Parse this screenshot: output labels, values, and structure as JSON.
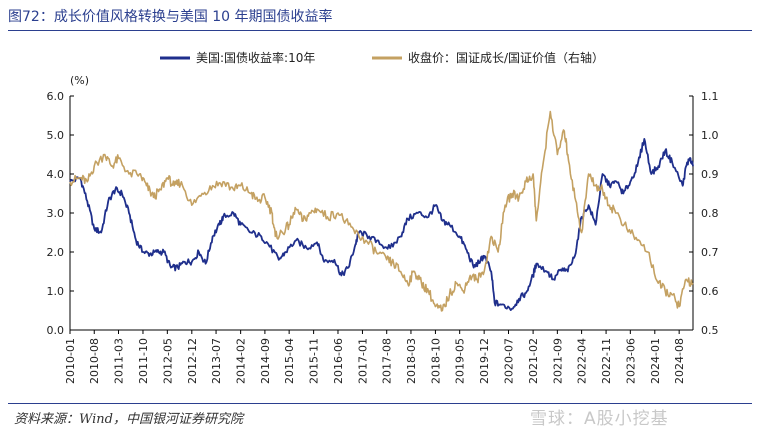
{
  "figure": {
    "title": "图72：成长价值风格转换与美国 10 年期国债收益率",
    "source": "资料来源：Wind，中国银河证券研究院",
    "watermark": "雪球：A股小挖基"
  },
  "chart_data": {
    "type": "line",
    "y_unit_label": "(%)",
    "x_tick_labels": [
      "2010-01",
      "2010-08",
      "2011-03",
      "2011-10",
      "2012-05",
      "2012-12",
      "2013-07",
      "2014-02",
      "2014-09",
      "2015-04",
      "2015-11",
      "2016-06",
      "2017-01",
      "2017-08",
      "2018-03",
      "2018-10",
      "2019-05",
      "2019-12",
      "2020-07",
      "2021-02",
      "2021-09",
      "2022-04",
      "2022-11",
      "2023-06",
      "2024-01",
      "2024-08"
    ],
    "x_range": [
      "2010-01-01",
      "2024-11-30"
    ],
    "ylim_left": [
      0,
      6
    ],
    "yticks_left": [
      "0.0",
      "1.0",
      "2.0",
      "3.0",
      "4.0",
      "5.0",
      "6.0"
    ],
    "ylim_right": [
      0.5,
      1.1
    ],
    "yticks_right": [
      "0.5",
      "0.6",
      "0.7",
      "0.8",
      "0.9",
      "1.0",
      "1.1"
    ],
    "grid": false,
    "legend_position": "top",
    "series": [
      {
        "name": "美国:国债收益率:10年",
        "axis": "left",
        "color": "#1f2f8c",
        "points": [
          [
            "2010-01-01",
            3.8
          ],
          [
            "2010-04-01",
            3.9
          ],
          [
            "2010-06-01",
            3.3
          ],
          [
            "2010-08-01",
            2.6
          ],
          [
            "2010-10-01",
            2.5
          ],
          [
            "2010-12-01",
            3.3
          ],
          [
            "2011-02-01",
            3.6
          ],
          [
            "2011-04-01",
            3.5
          ],
          [
            "2011-06-01",
            3.0
          ],
          [
            "2011-08-01",
            2.3
          ],
          [
            "2011-10-01",
            2.0
          ],
          [
            "2011-12-01",
            1.95
          ],
          [
            "2012-02-01",
            2.0
          ],
          [
            "2012-04-01",
            2.0
          ],
          [
            "2012-06-01",
            1.6
          ],
          [
            "2012-08-01",
            1.6
          ],
          [
            "2012-10-01",
            1.75
          ],
          [
            "2012-12-01",
            1.75
          ],
          [
            "2013-02-01",
            2.0
          ],
          [
            "2013-04-01",
            1.7
          ],
          [
            "2013-06-01",
            2.4
          ],
          [
            "2013-08-01",
            2.7
          ],
          [
            "2013-09-01",
            2.9
          ],
          [
            "2013-12-01",
            3.0
          ],
          [
            "2014-02-01",
            2.7
          ],
          [
            "2014-05-01",
            2.5
          ],
          [
            "2014-08-01",
            2.4
          ],
          [
            "2014-10-01",
            2.2
          ],
          [
            "2015-01-01",
            1.8
          ],
          [
            "2015-03-01",
            2.0
          ],
          [
            "2015-06-01",
            2.3
          ],
          [
            "2015-09-01",
            2.1
          ],
          [
            "2015-12-01",
            2.25
          ],
          [
            "2016-02-01",
            1.75
          ],
          [
            "2016-05-01",
            1.8
          ],
          [
            "2016-07-01",
            1.4
          ],
          [
            "2016-09-01",
            1.6
          ],
          [
            "2016-11-01",
            2.2
          ],
          [
            "2016-12-01",
            2.5
          ],
          [
            "2017-03-01",
            2.4
          ],
          [
            "2017-06-01",
            2.2
          ],
          [
            "2017-09-01",
            2.1
          ],
          [
            "2017-12-01",
            2.4
          ],
          [
            "2018-02-01",
            2.85
          ],
          [
            "2018-05-01",
            3.0
          ],
          [
            "2018-08-01",
            2.9
          ],
          [
            "2018-10-01",
            3.2
          ],
          [
            "2018-12-01",
            2.8
          ],
          [
            "2019-02-01",
            2.7
          ],
          [
            "2019-05-01",
            2.4
          ],
          [
            "2019-07-01",
            2.05
          ],
          [
            "2019-09-01",
            1.6
          ],
          [
            "2019-11-01",
            1.8
          ],
          [
            "2019-12-01",
            1.9
          ],
          [
            "2020-02-01",
            1.5
          ],
          [
            "2020-03-01",
            0.7
          ],
          [
            "2020-05-01",
            0.65
          ],
          [
            "2020-08-01",
            0.55
          ],
          [
            "2020-10-01",
            0.8
          ],
          [
            "2020-12-01",
            0.95
          ],
          [
            "2021-02-01",
            1.4
          ],
          [
            "2021-03-01",
            1.7
          ],
          [
            "2021-06-01",
            1.5
          ],
          [
            "2021-08-01",
            1.3
          ],
          [
            "2021-10-01",
            1.55
          ],
          [
            "2021-12-01",
            1.5
          ],
          [
            "2022-02-01",
            1.9
          ],
          [
            "2022-04-01",
            2.9
          ],
          [
            "2022-06-01",
            3.2
          ],
          [
            "2022-08-01",
            2.7
          ],
          [
            "2022-10-01",
            4.0
          ],
          [
            "2022-12-01",
            3.7
          ],
          [
            "2023-02-01",
            3.8
          ],
          [
            "2023-04-01",
            3.5
          ],
          [
            "2023-06-01",
            3.8
          ],
          [
            "2023-08-01",
            4.2
          ],
          [
            "2023-10-01",
            4.9
          ],
          [
            "2023-12-01",
            4.0
          ],
          [
            "2024-02-01",
            4.2
          ],
          [
            "2024-04-01",
            4.6
          ],
          [
            "2024-06-01",
            4.3
          ],
          [
            "2024-09-01",
            3.7
          ],
          [
            "2024-10-01",
            4.2
          ],
          [
            "2024-11-01",
            4.4
          ],
          [
            "2024-11-30",
            4.2
          ]
        ]
      },
      {
        "name": "收盘价：国证成长/国证价值（右轴）",
        "axis": "right",
        "color": "#c4a162",
        "points": [
          [
            "2010-01-01",
            0.88
          ],
          [
            "2010-04-01",
            0.89
          ],
          [
            "2010-06-01",
            0.88
          ],
          [
            "2010-08-01",
            0.92
          ],
          [
            "2010-11-01",
            0.95
          ],
          [
            "2011-01-01",
            0.92
          ],
          [
            "2011-03-01",
            0.94
          ],
          [
            "2011-06-01",
            0.9
          ],
          [
            "2011-09-01",
            0.9
          ],
          [
            "2011-11-01",
            0.87
          ],
          [
            "2012-01-01",
            0.84
          ],
          [
            "2012-03-01",
            0.86
          ],
          [
            "2012-05-01",
            0.89
          ],
          [
            "2012-07-01",
            0.87
          ],
          [
            "2012-09-01",
            0.88
          ],
          [
            "2012-12-01",
            0.82
          ],
          [
            "2013-03-01",
            0.85
          ],
          [
            "2013-06-01",
            0.87
          ],
          [
            "2013-09-01",
            0.88
          ],
          [
            "2013-12-01",
            0.86
          ],
          [
            "2014-02-01",
            0.87
          ],
          [
            "2014-05-01",
            0.85
          ],
          [
            "2014-07-01",
            0.83
          ],
          [
            "2014-09-01",
            0.84
          ],
          [
            "2014-11-01",
            0.8
          ],
          [
            "2014-12-01",
            0.74
          ],
          [
            "2015-02-01",
            0.75
          ],
          [
            "2015-04-01",
            0.77
          ],
          [
            "2015-06-01",
            0.81
          ],
          [
            "2015-08-01",
            0.78
          ],
          [
            "2015-10-01",
            0.8
          ],
          [
            "2015-12-01",
            0.81
          ],
          [
            "2016-03-01",
            0.79
          ],
          [
            "2016-06-01",
            0.8
          ],
          [
            "2016-09-01",
            0.77
          ],
          [
            "2016-12-01",
            0.74
          ],
          [
            "2017-02-01",
            0.73
          ],
          [
            "2017-05-01",
            0.7
          ],
          [
            "2017-08-01",
            0.68
          ],
          [
            "2017-10-01",
            0.67
          ],
          [
            "2017-12-01",
            0.65
          ],
          [
            "2018-02-01",
            0.62
          ],
          [
            "2018-04-01",
            0.65
          ],
          [
            "2018-06-01",
            0.62
          ],
          [
            "2018-08-01",
            0.6
          ],
          [
            "2018-10-01",
            0.56
          ],
          [
            "2018-12-01",
            0.55
          ],
          [
            "2019-02-01",
            0.59
          ],
          [
            "2019-04-01",
            0.62
          ],
          [
            "2019-06-01",
            0.6
          ],
          [
            "2019-08-01",
            0.64
          ],
          [
            "2019-10-01",
            0.63
          ],
          [
            "2019-12-01",
            0.65
          ],
          [
            "2020-02-01",
            0.74
          ],
          [
            "2020-04-01",
            0.7
          ],
          [
            "2020-06-01",
            0.82
          ],
          [
            "2020-08-01",
            0.85
          ],
          [
            "2020-10-01",
            0.84
          ],
          [
            "2020-12-01",
            0.88
          ],
          [
            "2021-02-01",
            0.9
          ],
          [
            "2021-03-01",
            0.78
          ],
          [
            "2021-05-01",
            0.93
          ],
          [
            "2021-07-01",
            1.06
          ],
          [
            "2021-09-01",
            0.95
          ],
          [
            "2021-11-01",
            1.01
          ],
          [
            "2021-12-01",
            0.95
          ],
          [
            "2022-02-01",
            0.84
          ],
          [
            "2022-04-01",
            0.75
          ],
          [
            "2022-06-01",
            0.9
          ],
          [
            "2022-08-01",
            0.87
          ],
          [
            "2022-10-01",
            0.86
          ],
          [
            "2022-12-01",
            0.82
          ],
          [
            "2023-02-01",
            0.8
          ],
          [
            "2023-05-01",
            0.76
          ],
          [
            "2023-08-01",
            0.73
          ],
          [
            "2023-11-01",
            0.7
          ],
          [
            "2024-02-01",
            0.62
          ],
          [
            "2024-04-01",
            0.6
          ],
          [
            "2024-06-01",
            0.59
          ],
          [
            "2024-08-01",
            0.56
          ],
          [
            "2024-10-01",
            0.63
          ],
          [
            "2024-11-30",
            0.62
          ]
        ]
      }
    ]
  }
}
